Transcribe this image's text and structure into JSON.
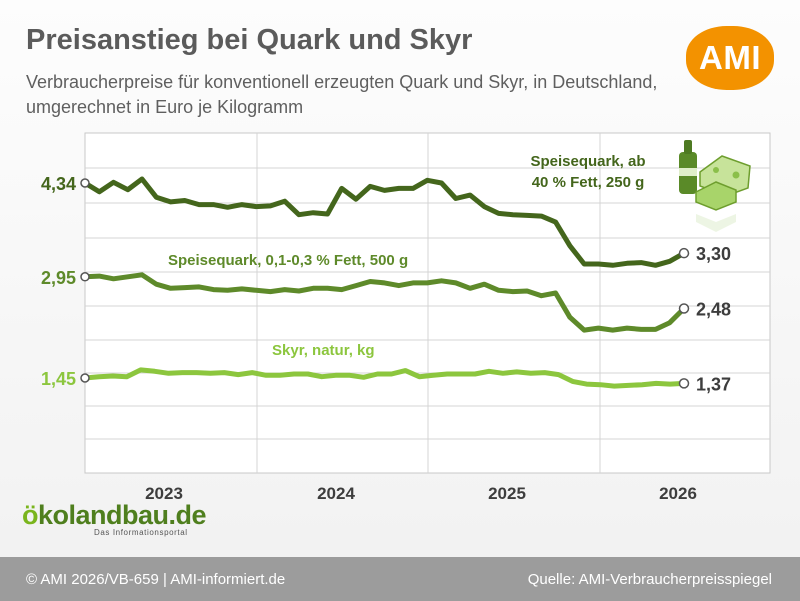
{
  "header": {
    "title": "Preisanstieg bei Quark und Skyr",
    "subtitle": "Verbraucherpreise für konventionell erzeugten Quark und Skyr, in Deutschland, umgerechnet in Euro je Kilogramm",
    "logo_text": "AMI",
    "logo_color": "#f39200"
  },
  "branding": {
    "eko_first": "ö",
    "eko_rest": "kolandbau.de",
    "eko_sub": "Das Informationsportal"
  },
  "footer": {
    "left": "© AMI 2026/VB-659 | AMI-informiert.de",
    "right": "Quelle: AMI-Verbraucherpreisspiegel"
  },
  "chart_data": {
    "type": "line",
    "title": "Preisanstieg bei Quark und Skyr",
    "x_labels": [
      "2023",
      "2024",
      "2025",
      "2026"
    ],
    "grid": true,
    "series": [
      {
        "name": "Speisequark, ab 40 % Fett, 250 g",
        "color": "#44661c",
        "start_label": "4,34",
        "end_label": "3,30",
        "values": [
          4.34,
          4.21,
          4.35,
          4.24,
          4.4,
          4.13,
          4.06,
          4.08,
          4.02,
          4.02,
          3.98,
          4.02,
          3.99,
          4.0,
          4.07,
          3.87,
          3.9,
          3.88,
          4.26,
          4.1,
          4.29,
          4.23,
          4.26,
          4.26,
          4.38,
          4.34,
          4.11,
          4.16,
          3.99,
          3.89,
          3.87,
          3.86,
          3.85,
          3.76,
          3.41,
          3.14,
          3.14,
          3.12,
          3.15,
          3.16,
          3.12,
          3.18,
          3.3
        ]
      },
      {
        "name": "Speisequark, 0,1-0,3 % Fett, 500 g",
        "color": "#5e8a2a",
        "start_label": "2,95",
        "end_label": "2,48",
        "values": [
          2.95,
          2.96,
          2.92,
          2.95,
          2.98,
          2.84,
          2.78,
          2.79,
          2.8,
          2.76,
          2.75,
          2.77,
          2.75,
          2.73,
          2.76,
          2.74,
          2.78,
          2.78,
          2.76,
          2.82,
          2.88,
          2.86,
          2.82,
          2.86,
          2.86,
          2.89,
          2.86,
          2.78,
          2.84,
          2.75,
          2.73,
          2.74,
          2.67,
          2.71,
          2.35,
          2.16,
          2.19,
          2.16,
          2.19,
          2.17,
          2.17,
          2.27,
          2.48
        ]
      },
      {
        "name": "Skyr, natur, kg",
        "color": "#8cc63e",
        "start_label": "1,45",
        "end_label": "1,37",
        "values": [
          1.45,
          1.47,
          1.48,
          1.47,
          1.57,
          1.55,
          1.52,
          1.53,
          1.53,
          1.52,
          1.53,
          1.5,
          1.53,
          1.49,
          1.49,
          1.51,
          1.51,
          1.47,
          1.49,
          1.49,
          1.46,
          1.51,
          1.51,
          1.56,
          1.47,
          1.49,
          1.51,
          1.51,
          1.51,
          1.55,
          1.52,
          1.54,
          1.52,
          1.53,
          1.5,
          1.4,
          1.36,
          1.35,
          1.33,
          1.34,
          1.35,
          1.37,
          1.36,
          1.37
        ]
      }
    ]
  }
}
